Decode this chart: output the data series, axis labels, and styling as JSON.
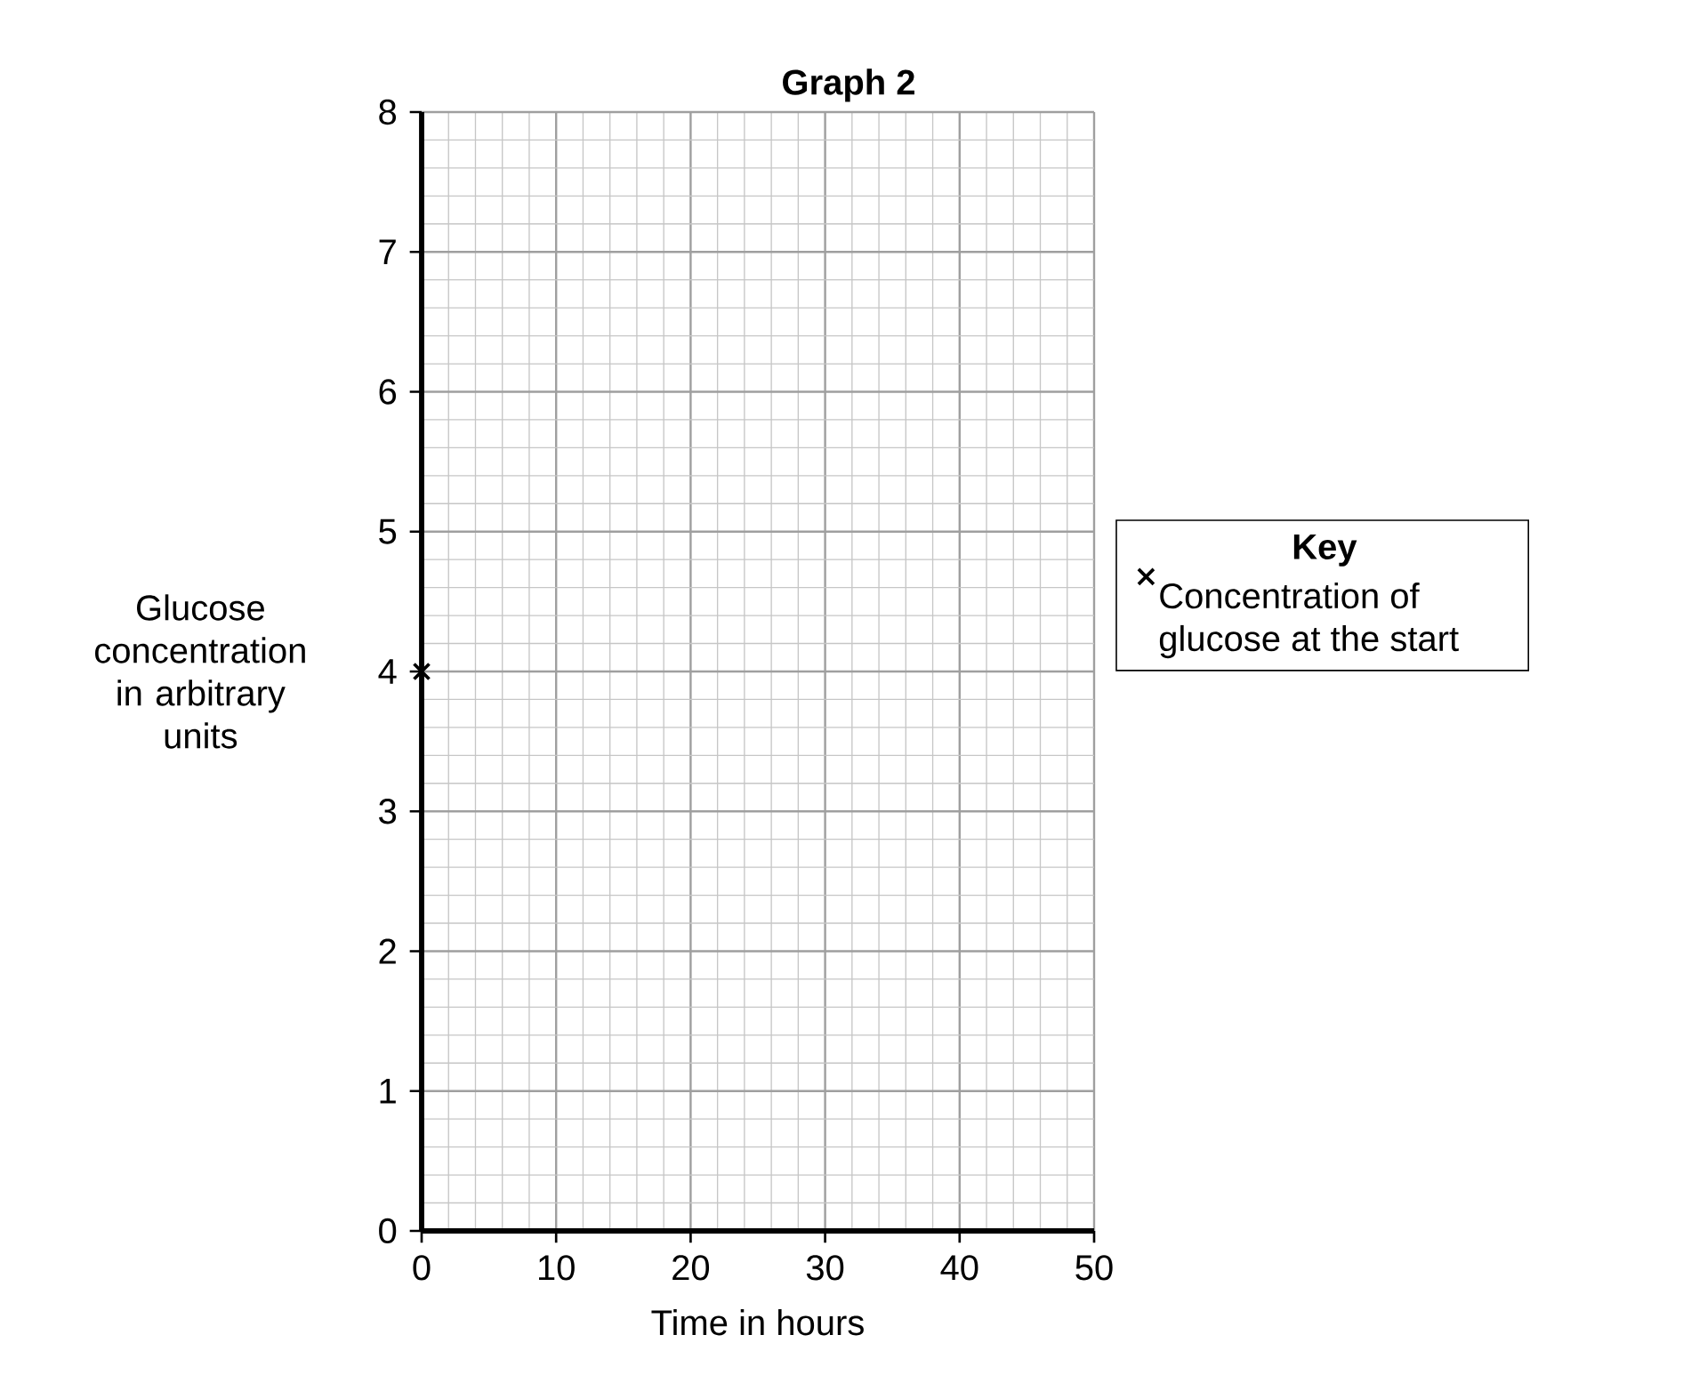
{
  "chart_data": {
    "type": "scatter",
    "title": "Graph 2",
    "xlabel": "Time in hours",
    "ylabel": "Glucose concentration in arbitrary units",
    "legend_title": "Key",
    "xlim": [
      0,
      50
    ],
    "ylim": [
      0,
      8
    ],
    "xticks": [
      0,
      10,
      20,
      30,
      40,
      50
    ],
    "yticks": [
      0,
      1,
      2,
      3,
      4,
      5,
      6,
      7,
      8
    ],
    "grid": true,
    "legend": "right",
    "marker": "cross",
    "series": [
      {
        "name": "Concentration of glucose at the start",
        "color": "#000000",
        "x": [
          0
        ],
        "values": [
          4
        ]
      }
    ]
  }
}
